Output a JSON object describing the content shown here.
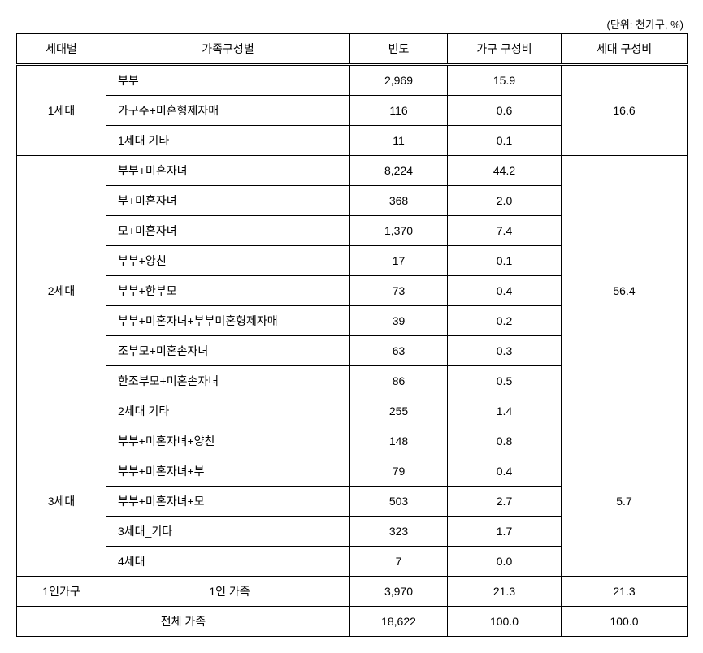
{
  "unit_label": "(단위: 천가구, %)",
  "headers": {
    "generation": "세대별",
    "family_type": "가족구성별",
    "frequency": "빈도",
    "household_ratio": "가구 구성비",
    "generation_ratio": "세대 구성비"
  },
  "groups": [
    {
      "generation_label": "1세대",
      "generation_ratio": "16.6",
      "rows": [
        {
          "family": "부부",
          "freq": "2,969",
          "house": "15.9"
        },
        {
          "family": "가구주+미혼형제자매",
          "freq": "116",
          "house": "0.6"
        },
        {
          "family": "1세대 기타",
          "freq": "11",
          "house": "0.1"
        }
      ]
    },
    {
      "generation_label": "2세대",
      "generation_ratio": "56.4",
      "rows": [
        {
          "family": "부부+미혼자녀",
          "freq": "8,224",
          "house": "44.2"
        },
        {
          "family": "부+미혼자녀",
          "freq": "368",
          "house": "2.0"
        },
        {
          "family": "모+미혼자녀",
          "freq": "1,370",
          "house": "7.4"
        },
        {
          "family": "부부+양친",
          "freq": "17",
          "house": "0.1"
        },
        {
          "family": "부부+한부모",
          "freq": "73",
          "house": "0.4"
        },
        {
          "family": "부부+미혼자녀+부부미혼형제자매",
          "freq": "39",
          "house": "0.2"
        },
        {
          "family": "조부모+미혼손자녀",
          "freq": "63",
          "house": "0.3"
        },
        {
          "family": "한조부모+미혼손자녀",
          "freq": "86",
          "house": "0.5"
        },
        {
          "family": "2세대 기타",
          "freq": "255",
          "house": "1.4"
        }
      ]
    },
    {
      "generation_label": "3세대",
      "generation_ratio": "5.7",
      "rows": [
        {
          "family": "부부+미혼자녀+양친",
          "freq": "148",
          "house": "0.8"
        },
        {
          "family": "부부+미혼자녀+부",
          "freq": "79",
          "house": "0.4"
        },
        {
          "family": "부부+미혼자녀+모",
          "freq": "503",
          "house": "2.7"
        },
        {
          "family": "3세대_기타",
          "freq": "323",
          "house": "1.7"
        },
        {
          "family": "4세대",
          "freq": "7",
          "house": "0.0"
        }
      ]
    }
  ],
  "single_row": {
    "generation_label": "1인가구",
    "family": "1인 가족",
    "freq": "3,970",
    "house": "21.3",
    "genr": "21.3"
  },
  "total_row": {
    "label": "전체 가족",
    "freq": "18,622",
    "house": "100.0",
    "genr": "100.0"
  },
  "style": {
    "font_family": "Malgun Gothic",
    "font_size_body": 14,
    "font_size_unit": 13,
    "border_color": "#000000",
    "background_color": "#ffffff",
    "col_widths": {
      "generation": 110,
      "family": 300,
      "frequency": 120,
      "household": 140,
      "genratio": 155
    }
  }
}
